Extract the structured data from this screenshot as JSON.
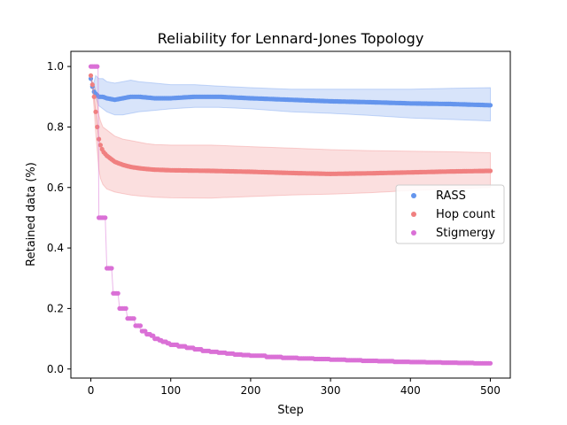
{
  "chart_data": {
    "type": "scatter",
    "title": "Reliability for Lennard-Jones Topology",
    "xlabel": "Step",
    "ylabel": "Retained data (%)",
    "xlim": [
      -25,
      525
    ],
    "ylim": [
      -0.03,
      1.05
    ],
    "xticks": [
      0,
      100,
      200,
      300,
      400,
      500
    ],
    "yticks": [
      0.0,
      0.2,
      0.4,
      0.6,
      0.8,
      1.0
    ],
    "xtick_labels": [
      "0",
      "100",
      "200",
      "300",
      "400",
      "500"
    ],
    "ytick_labels": [
      "0.0",
      "0.2",
      "0.4",
      "0.6",
      "0.8",
      "1.0"
    ],
    "grid": false,
    "legend_position": "center-right",
    "series": [
      {
        "name": "RASS",
        "color": "#6495ed",
        "x": [
          0,
          3,
          6,
          10,
          15,
          20,
          30,
          40,
          50,
          60,
          80,
          100,
          130,
          160,
          200,
          250,
          300,
          350,
          400,
          450,
          500
        ],
        "y": [
          0.96,
          0.92,
          0.91,
          0.9,
          0.9,
          0.895,
          0.89,
          0.895,
          0.9,
          0.9,
          0.895,
          0.895,
          0.9,
          0.9,
          0.895,
          0.89,
          0.885,
          0.882,
          0.878,
          0.876,
          0.872
        ],
        "lower": [
          0.96,
          0.92,
          0.9,
          0.87,
          0.86,
          0.85,
          0.84,
          0.84,
          0.845,
          0.85,
          0.855,
          0.86,
          0.865,
          0.865,
          0.86,
          0.85,
          0.845,
          0.838,
          0.83,
          0.825,
          0.82
        ],
        "upper": [
          0.96,
          0.94,
          0.97,
          0.96,
          0.96,
          0.95,
          0.945,
          0.95,
          0.955,
          0.95,
          0.945,
          0.94,
          0.94,
          0.935,
          0.93,
          0.925,
          0.925,
          0.925,
          0.925,
          0.928,
          0.93
        ]
      },
      {
        "name": "Hop count",
        "color": "#f08080",
        "x": [
          0,
          2,
          4,
          6,
          8,
          10,
          12,
          15,
          20,
          25,
          30,
          40,
          50,
          60,
          70,
          80,
          100,
          150,
          200,
          250,
          300,
          350,
          400,
          450,
          500
        ],
        "y": [
          0.97,
          0.94,
          0.9,
          0.85,
          0.8,
          0.76,
          0.74,
          0.72,
          0.705,
          0.695,
          0.685,
          0.675,
          0.668,
          0.664,
          0.661,
          0.659,
          0.657,
          0.655,
          0.652,
          0.648,
          0.645,
          0.647,
          0.65,
          0.653,
          0.655
        ],
        "lower": [
          0.97,
          0.93,
          0.86,
          0.78,
          0.72,
          0.66,
          0.63,
          0.61,
          0.595,
          0.59,
          0.585,
          0.58,
          0.575,
          0.572,
          0.57,
          0.568,
          0.566,
          0.565,
          0.57,
          0.575,
          0.578,
          0.583,
          0.59,
          0.595,
          0.6
        ],
        "upper": [
          0.97,
          0.95,
          0.94,
          0.92,
          0.88,
          0.84,
          0.82,
          0.8,
          0.79,
          0.78,
          0.77,
          0.76,
          0.755,
          0.75,
          0.745,
          0.742,
          0.74,
          0.74,
          0.735,
          0.73,
          0.725,
          0.722,
          0.72,
          0.718,
          0.715
        ]
      },
      {
        "name": "Stigmergy",
        "color": "#da70d6",
        "x": [
          0,
          2,
          4,
          6,
          8,
          9,
          10,
          12,
          14,
          16,
          18,
          20,
          22,
          24,
          26,
          28,
          30,
          32,
          34,
          36,
          38,
          40,
          42,
          44,
          46,
          48,
          50,
          52,
          54,
          56,
          58,
          60,
          63,
          66,
          70,
          75,
          80,
          85,
          90,
          95,
          100,
          110,
          120,
          130,
          140,
          150,
          160,
          170,
          180,
          190,
          200,
          220,
          240,
          260,
          280,
          300,
          320,
          340,
          360,
          380,
          400,
          420,
          440,
          460,
          480,
          500
        ],
        "y": [
          1.0,
          1.0,
          1.0,
          1.0,
          1.0,
          1.0,
          0.5,
          0.5,
          0.5,
          0.5,
          0.5,
          0.333,
          0.333,
          0.333,
          0.333,
          0.25,
          0.25,
          0.25,
          0.25,
          0.2,
          0.2,
          0.2,
          0.2,
          0.2,
          0.167,
          0.167,
          0.167,
          0.167,
          0.167,
          0.143,
          0.143,
          0.143,
          0.125,
          0.125,
          0.115,
          0.11,
          0.1,
          0.095,
          0.09,
          0.085,
          0.08,
          0.075,
          0.07,
          0.065,
          0.06,
          0.057,
          0.054,
          0.051,
          0.048,
          0.046,
          0.044,
          0.04,
          0.037,
          0.035,
          0.033,
          0.031,
          0.029,
          0.027,
          0.026,
          0.024,
          0.023,
          0.022,
          0.021,
          0.02,
          0.019,
          0.019
        ]
      }
    ]
  }
}
